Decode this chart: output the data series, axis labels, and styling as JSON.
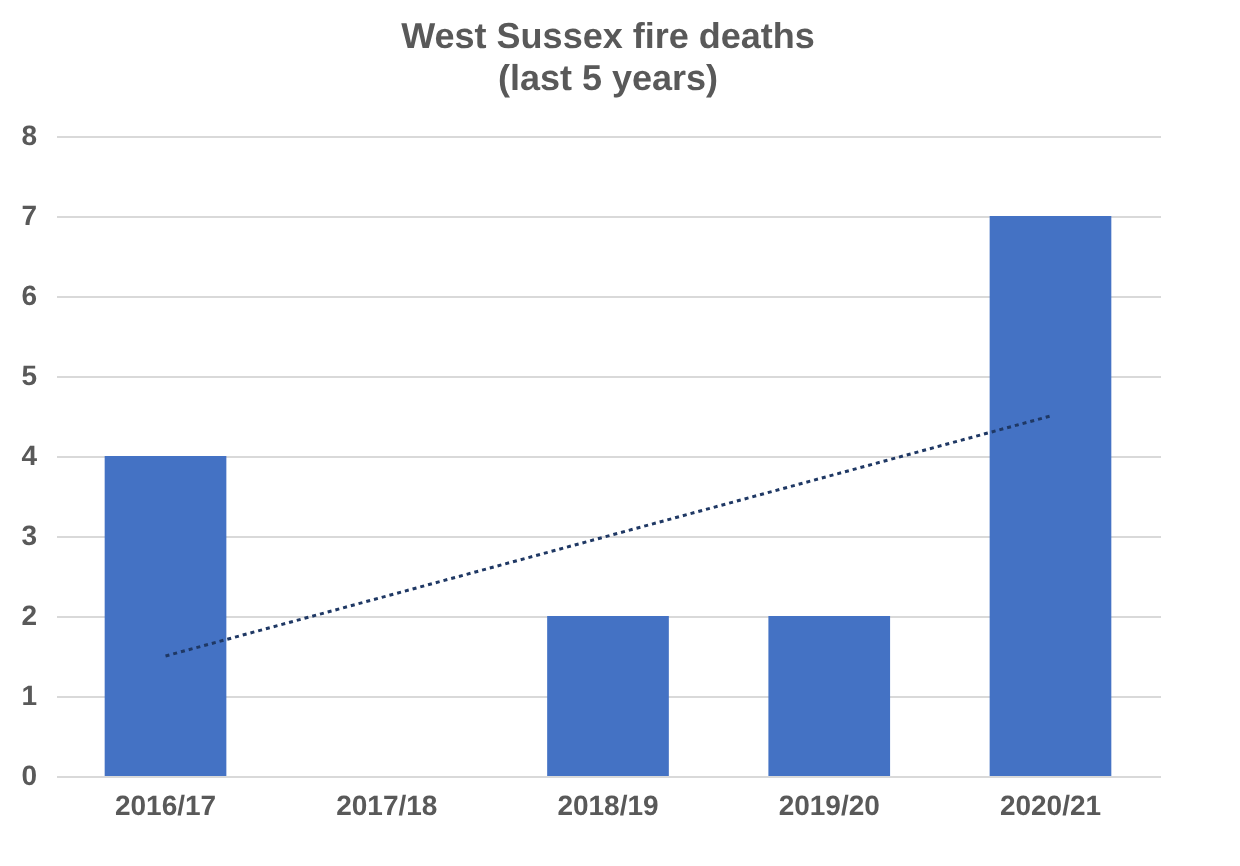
{
  "chart_data": {
    "type": "bar",
    "title": "West Sussex fire deaths",
    "subtitle": "(last 5 years)",
    "categories": [
      "2016/17",
      "2017/18",
      "2018/19",
      "2019/20",
      "2020/21"
    ],
    "series": [
      {
        "color": "#4472c4",
        "values": [
          4,
          0,
          2,
          2,
          7
        ]
      },
      {
        "type": "line",
        "color": "#1f3864",
        "x": [
          "2016/17",
          "2020/21"
        ],
        "values": [
          1.5,
          4.5
        ],
        "line_style": "dotted"
      }
    ],
    "ylim": [
      0,
      8
    ],
    "yticks": [
      0,
      1,
      2,
      3,
      4,
      5,
      6,
      7,
      8
    ],
    "grid": "y"
  }
}
